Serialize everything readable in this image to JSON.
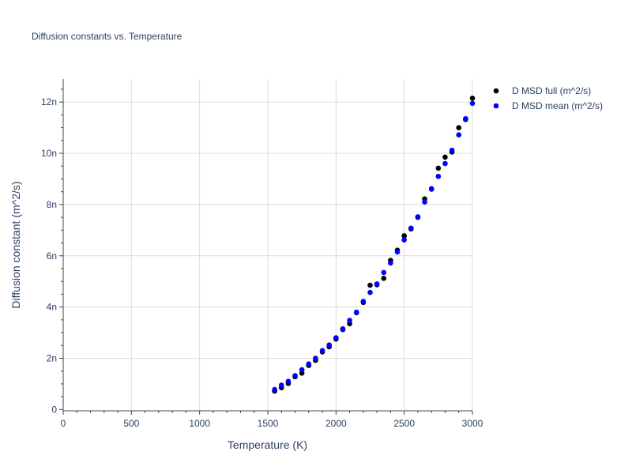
{
  "chart_data": {
    "type": "scatter",
    "title": "Diffusion constants vs. Temperature",
    "xlabel": "Temperature (K)",
    "ylabel": "Diffusion constant (m^2/s)",
    "xlim": [
      0,
      3000
    ],
    "ylim": [
      -0.05,
      12.9
    ],
    "x_ticks": [
      0,
      500,
      1000,
      1500,
      2000,
      2500,
      3000
    ],
    "x_tick_labels": [
      "0",
      "500",
      "1000",
      "1500",
      "2000",
      "2500",
      "3000"
    ],
    "y_ticks": [
      0,
      2,
      4,
      6,
      8,
      10,
      12
    ],
    "y_tick_labels": [
      "0",
      "2n",
      "4n",
      "6n",
      "8n",
      "10n",
      "12n"
    ],
    "legend_position": "top-right-outside",
    "grid": true,
    "x": [
      1550,
      1600,
      1650,
      1700,
      1750,
      1800,
      1850,
      1900,
      1950,
      2000,
      2050,
      2100,
      2150,
      2200,
      2250,
      2300,
      2350,
      2400,
      2450,
      2500,
      2550,
      2600,
      2650,
      2700,
      2750,
      2800,
      2850,
      2900,
      2950,
      3000
    ],
    "series": [
      {
        "name": "D MSD full (m^2/s)",
        "color": "#000000",
        "values": [
          0.72,
          0.85,
          1.02,
          1.28,
          1.42,
          1.72,
          1.92,
          2.25,
          2.45,
          2.75,
          3.12,
          3.35,
          3.78,
          4.18,
          4.85,
          4.87,
          5.12,
          5.82,
          6.22,
          6.78,
          7.05,
          7.5,
          8.22,
          8.6,
          9.42,
          9.85,
          10.05,
          11.0,
          11.32,
          12.15
        ]
      },
      {
        "name": "D MSD mean (m^2/s)",
        "color": "#0000ff",
        "values": [
          0.78,
          0.95,
          1.1,
          1.32,
          1.55,
          1.78,
          2.0,
          2.3,
          2.52,
          2.8,
          3.15,
          3.48,
          3.8,
          4.22,
          4.57,
          4.9,
          5.35,
          5.72,
          6.15,
          6.62,
          7.08,
          7.52,
          8.1,
          8.62,
          9.1,
          9.6,
          10.12,
          10.72,
          11.35,
          11.95
        ]
      }
    ]
  }
}
